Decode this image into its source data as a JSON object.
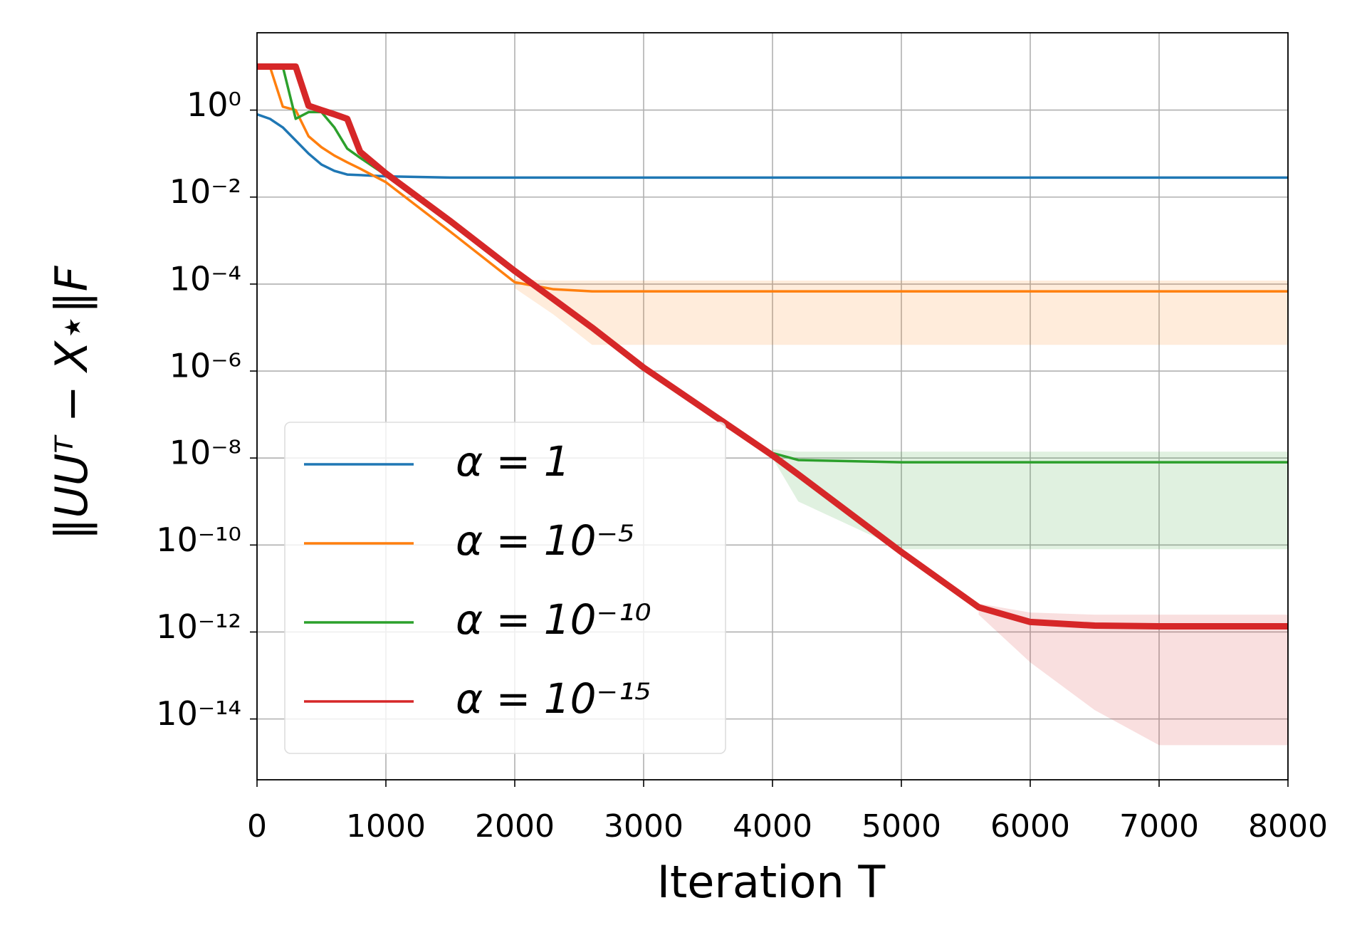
{
  "chart_data": {
    "type": "line",
    "ylabel": "‖UUᵀ − X⋆‖F",
    "xlabel": "Iteration T",
    "xlim": [
      0,
      8000
    ],
    "xticks": [
      0,
      1000,
      2000,
      3000,
      4000,
      5000,
      6000,
      7000,
      8000
    ],
    "ylim": [
      4e-16,
      60
    ],
    "yscale": "log",
    "yticks": [
      {
        "value": 1,
        "label": "10⁰"
      },
      {
        "value": 0.01,
        "label": "10⁻²"
      },
      {
        "value": 0.0001,
        "label": "10⁻⁴"
      },
      {
        "value": 1e-06,
        "label": "10⁻⁶"
      },
      {
        "value": 1e-08,
        "label": "10⁻⁸"
      },
      {
        "value": 1e-10,
        "label": "10⁻¹⁰"
      },
      {
        "value": 1e-12,
        "label": "10⁻¹²"
      },
      {
        "value": 1e-14,
        "label": "10⁻¹⁴"
      }
    ],
    "grid": true,
    "legend": "lower left",
    "x": [
      0,
      100,
      200,
      300,
      400,
      500,
      600,
      700,
      800,
      1000,
      1500,
      2000,
      2300,
      2600,
      3000,
      4000,
      4200,
      5000,
      5600,
      6000,
      6500,
      7000,
      8000
    ],
    "series": [
      {
        "name": "α = 1",
        "color": "#1f77b4",
        "values": [
          0.8,
          0.63,
          0.4,
          0.2,
          0.1,
          0.056,
          0.04,
          0.033,
          0.032,
          0.03,
          0.028,
          0.028,
          0.028,
          0.028,
          0.028,
          0.028,
          0.028,
          0.028,
          0.028,
          0.028,
          0.028,
          0.028,
          0.028
        ]
      },
      {
        "name": "α = 10⁻⁵",
        "color": "#ff7f0e",
        "values": [
          10,
          10,
          1.2,
          1,
          0.25,
          0.14,
          0.09,
          0.063,
          0.045,
          0.022,
          0.0016,
          0.00011,
          7.6e-05,
          6.8e-05,
          6.8e-05,
          6.8e-05,
          6.8e-05,
          6.8e-05,
          6.8e-05,
          6.8e-05,
          6.8e-05,
          6.8e-05,
          6.8e-05
        ],
        "lower": [
          null,
          null,
          null,
          null,
          null,
          null,
          null,
          null,
          null,
          null,
          null,
          8e-05,
          2e-05,
          4e-06,
          4e-06,
          4e-06,
          4e-06,
          4e-06,
          4e-06,
          4e-06,
          4e-06,
          4e-06,
          4e-06
        ],
        "upper": [
          null,
          null,
          null,
          null,
          null,
          null,
          null,
          null,
          null,
          null,
          null,
          0.00013,
          0.00012,
          0.00012,
          0.00012,
          0.00012,
          0.00012,
          0.00012,
          0.00012,
          0.00012,
          0.00012,
          0.00012,
          0.00012
        ]
      },
      {
        "name": "α = 10⁻¹⁰",
        "color": "#2ca02c",
        "values": [
          10,
          10,
          10,
          0.63,
          0.9,
          0.9,
          0.4,
          0.13,
          0.08,
          0.032,
          0.0025,
          0.0002,
          4e-05,
          1e-05,
          1.2e-06,
          1.3e-08,
          9e-09,
          8e-09,
          8e-09,
          8e-09,
          8e-09,
          8e-09,
          8e-09
        ],
        "lower": [
          null,
          null,
          null,
          null,
          null,
          null,
          null,
          null,
          null,
          null,
          null,
          null,
          null,
          null,
          null,
          1e-08,
          1e-09,
          8e-11,
          8e-11,
          8e-11,
          8e-11,
          8e-11,
          8e-11
        ],
        "upper": [
          null,
          null,
          null,
          null,
          null,
          null,
          null,
          null,
          null,
          null,
          null,
          null,
          null,
          null,
          null,
          1.6e-08,
          1.4e-08,
          1.4e-08,
          1.4e-08,
          1.4e-08,
          1.4e-08,
          1.4e-08,
          1.4e-08
        ]
      },
      {
        "name": "α = 10⁻¹⁵",
        "color": "#d62728",
        "values": [
          10,
          10,
          10,
          10,
          1.26,
          1,
          0.8,
          0.63,
          0.11,
          0.035,
          0.0028,
          0.0002,
          4.5e-05,
          1e-05,
          1.2e-06,
          1.15e-08,
          4.2e-09,
          6.9e-11,
          3.7e-12,
          1.7e-12,
          1.4e-12,
          1.35e-12,
          1.35e-12
        ],
        "lower": [
          null,
          null,
          null,
          null,
          null,
          null,
          null,
          null,
          null,
          null,
          null,
          null,
          null,
          null,
          null,
          null,
          null,
          null,
          2.5e-12,
          2e-13,
          1.6e-14,
          2.5e-15,
          2.5e-15
        ],
        "upper": [
          null,
          null,
          null,
          null,
          null,
          null,
          null,
          null,
          null,
          null,
          null,
          null,
          null,
          null,
          null,
          null,
          null,
          null,
          4.5e-12,
          2.8e-12,
          2.5e-12,
          2.5e-12,
          2.5e-12
        ]
      }
    ]
  }
}
